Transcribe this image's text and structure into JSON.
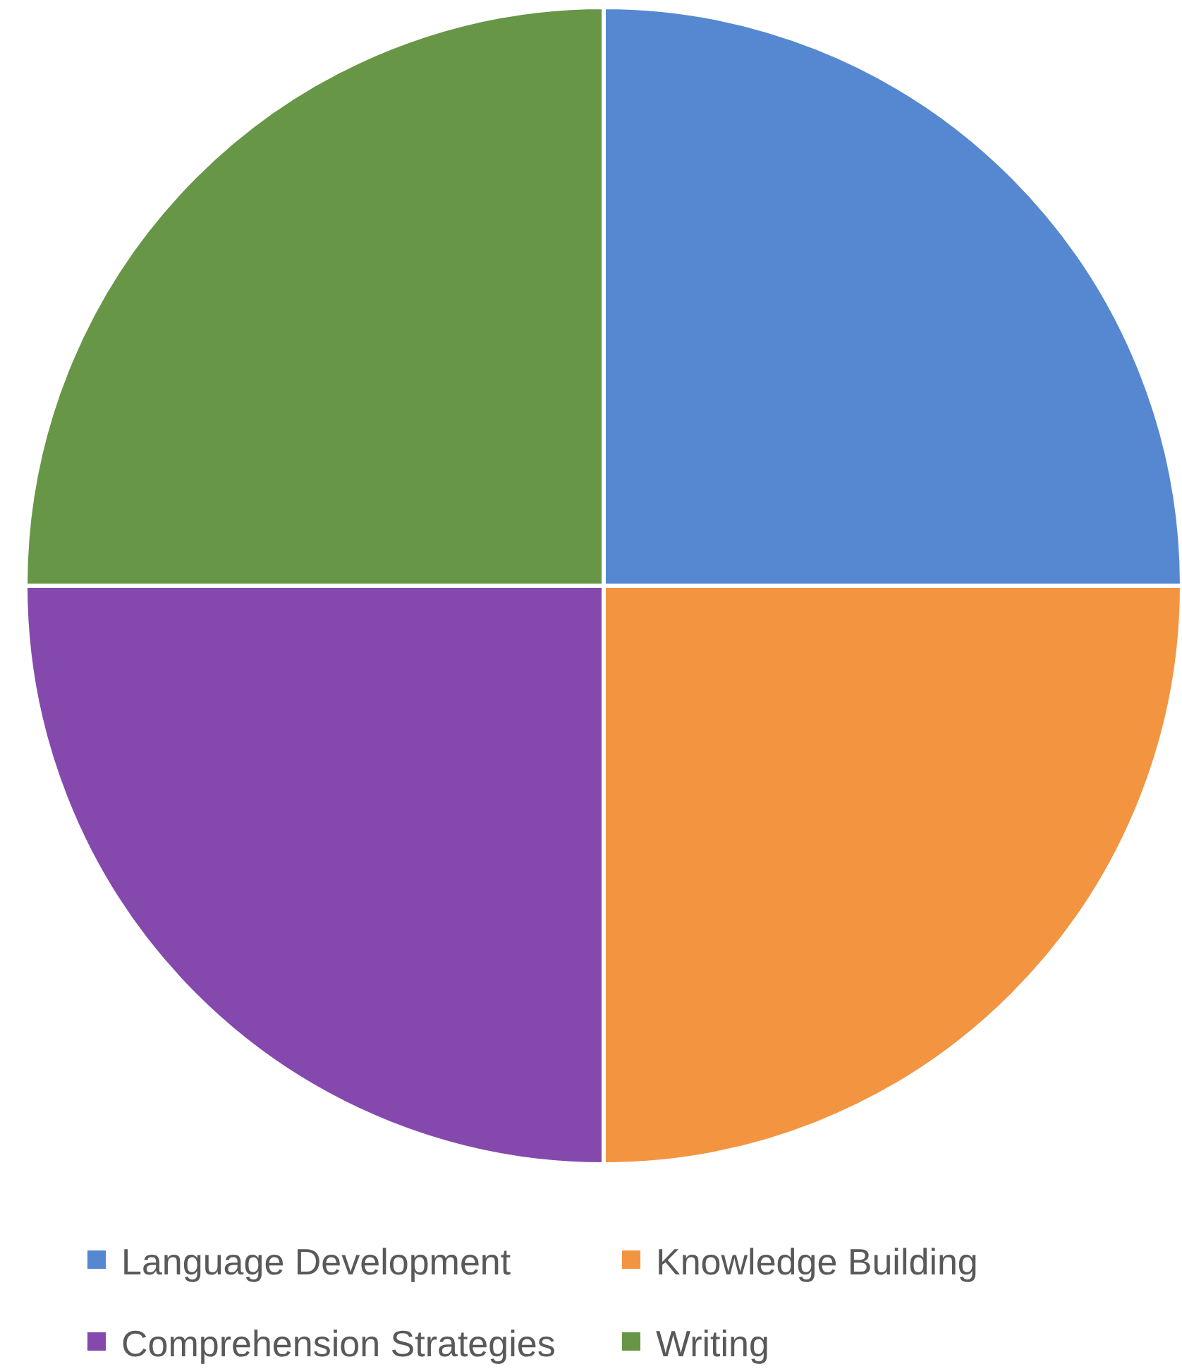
{
  "chart_data": {
    "type": "pie",
    "categories": [
      "Language Development",
      "Knowledge Building",
      "Comprehension Strategies",
      "Writing"
    ],
    "values": [
      25,
      25,
      25,
      25
    ],
    "colors": [
      "#5588d0",
      "#f39441",
      "#8549ae",
      "#679646"
    ],
    "legend": "bottom"
  }
}
